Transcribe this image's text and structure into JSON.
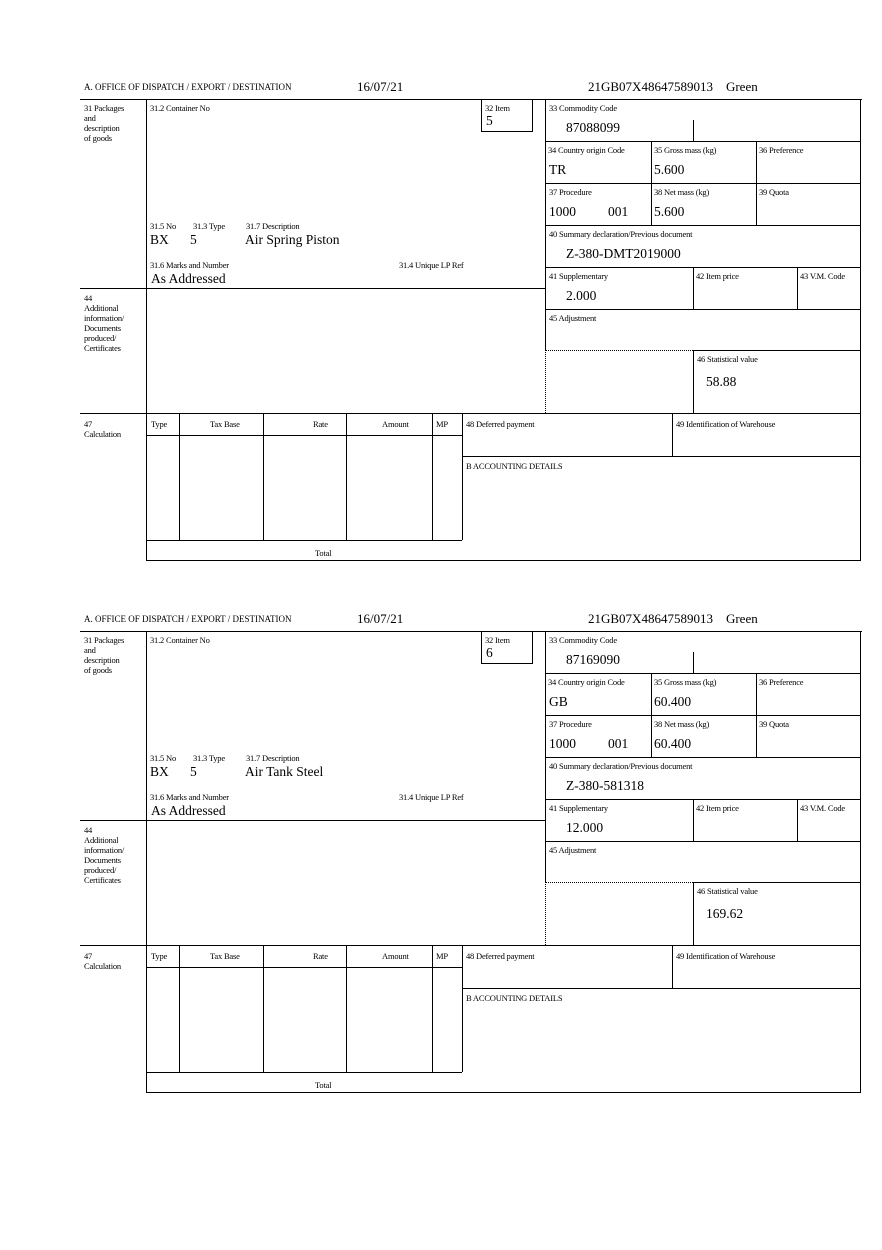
{
  "labels": {
    "office": "A. OFFICE OF DISPATCH / EXPORT / DESTINATION",
    "packages": "31 Packages\nand\ndescription\nof goods",
    "container": "31.2 Container No",
    "item": "32 Item",
    "commodity": "33 Commodity Code",
    "country": "34 Country origin Code",
    "gross": "35 Gross mass (kg)",
    "preference": "36 Preference",
    "procedure": "37 Procedure",
    "net": "38 Net mass (kg)",
    "quota": "39 Quota",
    "summary": "40 Summary declaration/Previous document",
    "no": "31.5 No",
    "type": "31.3 Type",
    "description": "31.7 Description",
    "marks": "31.6 Marks and Number",
    "unique": "31.4 Unique LP Ref",
    "supplementary": "41 Supplementary",
    "item_price": "42 Item price",
    "vm_code": "43 V.M. Code",
    "additional": "44\nAdditional\ninformation/\nDocuments\nproduced/\nCertificates",
    "adjustment": "45 Adjustment",
    "statistical": "46 Statistical value",
    "calculation": "47\nCalculation",
    "calc_type": "Type",
    "calc_tax_base": "Tax Base",
    "calc_rate": "Rate",
    "calc_amount": "Amount",
    "calc_mp": "MP",
    "calc_total": "Total",
    "deferred": "48 Deferred payment",
    "warehouse": "49 Identification of Warehouse",
    "accounting": "B ACCOUNTING DETAILS"
  },
  "forms": [
    {
      "date": "16/07/21",
      "reference": "21GB07X48647589013",
      "route": "Green",
      "item": "5",
      "commodity_code": "87088099",
      "country": "TR",
      "gross_mass": "5.600",
      "procedure": "1000",
      "procedure_additional": "001",
      "net_mass": "5.600",
      "summary_document": "Z-380-DMT2019000",
      "package_kind": "BX",
      "package_count": "5",
      "description": "Air Spring Piston",
      "marks": "As Addressed",
      "supplementary": "2.000",
      "statistical_value": "58.88"
    },
    {
      "date": "16/07/21",
      "reference": "21GB07X48647589013",
      "route": "Green",
      "item": "6",
      "commodity_code": "87169090",
      "country": "GB",
      "gross_mass": "60.400",
      "procedure": "1000",
      "procedure_additional": "001",
      "net_mass": "60.400",
      "summary_document": "Z-380-581318",
      "package_kind": "BX",
      "package_count": "5",
      "description": "Air Tank Steel",
      "marks": "As Addressed",
      "supplementary": "12.000",
      "statistical_value": "169.62"
    }
  ]
}
